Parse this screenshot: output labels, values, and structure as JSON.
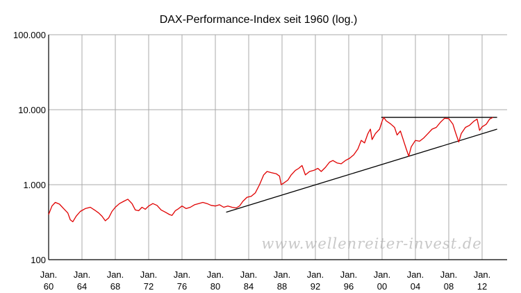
{
  "chart_data": {
    "type": "line",
    "title": "DAX-Performance-Index seit 1960 (log.)",
    "yscale": "log",
    "ylim": [
      100,
      100000
    ],
    "xlim": [
      1960,
      2015
    ],
    "grid": true,
    "watermark": "www.wellenreiter-invest.de",
    "y_ticks": [
      {
        "value": 100,
        "label": "100"
      },
      {
        "value": 1000,
        "label": "1.000"
      },
      {
        "value": 10000,
        "label": "10.000"
      },
      {
        "value": 100000,
        "label": "100.000"
      }
    ],
    "x_ticks": [
      {
        "year": 1960,
        "label": "Jan.",
        "sub": "60"
      },
      {
        "year": 1964,
        "label": "Jan.",
        "sub": "64"
      },
      {
        "year": 1968,
        "label": "Jan.",
        "sub": "68"
      },
      {
        "year": 1972,
        "label": "Jan.",
        "sub": "72"
      },
      {
        "year": 1976,
        "label": "Jan.",
        "sub": "76"
      },
      {
        "year": 1980,
        "label": "Jan.",
        "sub": "80"
      },
      {
        "year": 1984,
        "label": "Jan.",
        "sub": "84"
      },
      {
        "year": 1988,
        "label": "Jan.",
        "sub": "88"
      },
      {
        "year": 1992,
        "label": "Jan.",
        "sub": "92"
      },
      {
        "year": 1996,
        "label": "Jan.",
        "sub": "96"
      },
      {
        "year": 2000,
        "label": "Jan.",
        "sub": "00"
      },
      {
        "year": 2004,
        "label": "Jan.",
        "sub": "04"
      },
      {
        "year": 2008,
        "label": "Jan.",
        "sub": "08"
      },
      {
        "year": 2012,
        "label": "Jan.",
        "sub": "12"
      }
    ],
    "series": [
      {
        "color": "#e00000",
        "points": [
          [
            1960.0,
            400
          ],
          [
            1960.4,
            520
          ],
          [
            1960.8,
            580
          ],
          [
            1961.3,
            550
          ],
          [
            1961.8,
            480
          ],
          [
            1962.3,
            420
          ],
          [
            1962.6,
            340
          ],
          [
            1962.9,
            320
          ],
          [
            1963.3,
            380
          ],
          [
            1963.8,
            440
          ],
          [
            1964.4,
            480
          ],
          [
            1965.0,
            500
          ],
          [
            1965.5,
            460
          ],
          [
            1966.0,
            420
          ],
          [
            1966.4,
            380
          ],
          [
            1966.8,
            330
          ],
          [
            1967.2,
            360
          ],
          [
            1967.6,
            440
          ],
          [
            1968.0,
            500
          ],
          [
            1968.5,
            560
          ],
          [
            1969.0,
            600
          ],
          [
            1969.5,
            640
          ],
          [
            1970.0,
            560
          ],
          [
            1970.4,
            460
          ],
          [
            1970.8,
            450
          ],
          [
            1971.2,
            500
          ],
          [
            1971.6,
            470
          ],
          [
            1972.0,
            520
          ],
          [
            1972.5,
            560
          ],
          [
            1973.0,
            530
          ],
          [
            1973.5,
            460
          ],
          [
            1974.0,
            430
          ],
          [
            1974.5,
            400
          ],
          [
            1974.8,
            390
          ],
          [
            1975.2,
            450
          ],
          [
            1975.6,
            480
          ],
          [
            1976.0,
            520
          ],
          [
            1976.5,
            480
          ],
          [
            1977.0,
            500
          ],
          [
            1977.5,
            540
          ],
          [
            1978.0,
            560
          ],
          [
            1978.5,
            580
          ],
          [
            1979.0,
            560
          ],
          [
            1979.5,
            530
          ],
          [
            1980.0,
            520
          ],
          [
            1980.5,
            540
          ],
          [
            1981.0,
            500
          ],
          [
            1981.5,
            520
          ],
          [
            1982.0,
            500
          ],
          [
            1982.5,
            490
          ],
          [
            1982.9,
            520
          ],
          [
            1983.3,
            600
          ],
          [
            1983.8,
            680
          ],
          [
            1984.3,
            700
          ],
          [
            1984.8,
            780
          ],
          [
            1985.3,
            1000
          ],
          [
            1985.8,
            1350
          ],
          [
            1986.2,
            1500
          ],
          [
            1986.7,
            1450
          ],
          [
            1987.3,
            1400
          ],
          [
            1987.7,
            1300
          ],
          [
            1987.9,
            1000
          ],
          [
            1988.2,
            1050
          ],
          [
            1988.7,
            1150
          ],
          [
            1989.1,
            1350
          ],
          [
            1989.6,
            1550
          ],
          [
            1990.0,
            1650
          ],
          [
            1990.4,
            1800
          ],
          [
            1990.8,
            1350
          ],
          [
            1991.3,
            1500
          ],
          [
            1991.8,
            1550
          ],
          [
            1992.3,
            1650
          ],
          [
            1992.7,
            1500
          ],
          [
            1993.2,
            1700
          ],
          [
            1993.7,
            2000
          ],
          [
            1994.1,
            2100
          ],
          [
            1994.6,
            1950
          ],
          [
            1995.1,
            1900
          ],
          [
            1995.6,
            2100
          ],
          [
            1996.1,
            2250
          ],
          [
            1996.6,
            2500
          ],
          [
            1997.1,
            3000
          ],
          [
            1997.5,
            3900
          ],
          [
            1997.9,
            3600
          ],
          [
            1998.3,
            4800
          ],
          [
            1998.6,
            5500
          ],
          [
            1998.8,
            4000
          ],
          [
            1999.2,
            4800
          ],
          [
            1999.7,
            5500
          ],
          [
            2000.0,
            7000
          ],
          [
            2000.2,
            7900
          ],
          [
            2000.5,
            7100
          ],
          [
            2001.0,
            6500
          ],
          [
            2001.5,
            5800
          ],
          [
            2001.8,
            4600
          ],
          [
            2002.2,
            5200
          ],
          [
            2002.6,
            3800
          ],
          [
            2002.9,
            3000
          ],
          [
            2003.2,
            2400
          ],
          [
            2003.5,
            3200
          ],
          [
            2004.0,
            3900
          ],
          [
            2004.5,
            3800
          ],
          [
            2005.0,
            4200
          ],
          [
            2005.5,
            4800
          ],
          [
            2006.0,
            5500
          ],
          [
            2006.5,
            5800
          ],
          [
            2007.0,
            6800
          ],
          [
            2007.5,
            7700
          ],
          [
            2008.0,
            7600
          ],
          [
            2008.5,
            6400
          ],
          [
            2008.8,
            5000
          ],
          [
            2009.2,
            3700
          ],
          [
            2009.5,
            4800
          ],
          [
            2010.0,
            5800
          ],
          [
            2010.5,
            6200
          ],
          [
            2011.0,
            7000
          ],
          [
            2011.4,
            7500
          ],
          [
            2011.7,
            5300
          ],
          [
            2012.0,
            5900
          ],
          [
            2012.5,
            6400
          ],
          [
            2012.9,
            7500
          ],
          [
            2013.3,
            7900
          ]
        ]
      }
    ],
    "trendlines": [
      {
        "color": "#000000",
        "from": [
          1981.3,
          430
        ],
        "to": [
          2013.8,
          5500
        ]
      },
      {
        "color": "#000000",
        "from": [
          1999.9,
          7900
        ],
        "to": [
          2013.8,
          7900
        ]
      }
    ]
  }
}
